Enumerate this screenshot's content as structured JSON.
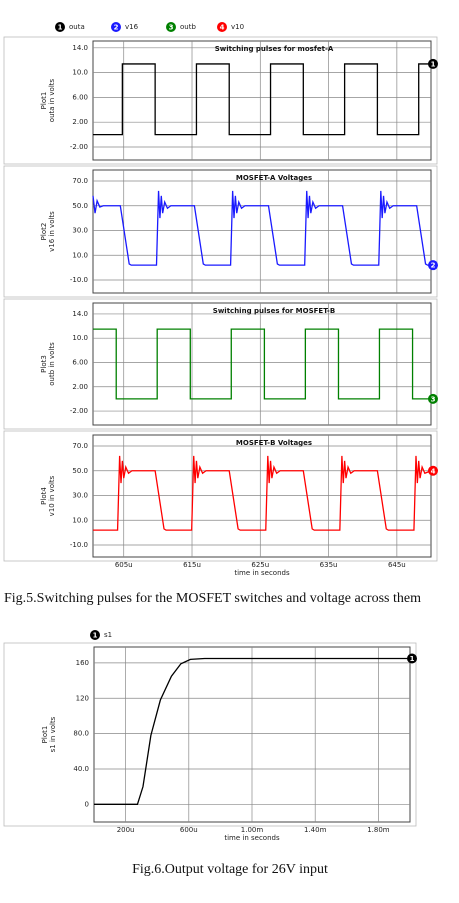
{
  "captions": [
    "Fig.5.Switching pulses for the MOSFET switches and voltage across them",
    "Fig.6.Output voltage for 26V input"
  ],
  "chart_data": [
    {
      "type": "line",
      "title": "Switching pulses for mosfet-A",
      "plot_name": "Plot1",
      "ylabel": "outa in volts",
      "xlim": [
        0.0006005,
        0.00065
      ],
      "xticks": [
        {
          "value": 0.000605,
          "label": "605u"
        },
        {
          "value": 0.000615,
          "label": "615u"
        },
        {
          "value": 0.000625,
          "label": "625u"
        },
        {
          "value": 0.000635,
          "label": "635u"
        },
        {
          "value": 0.000645,
          "label": "645u"
        }
      ],
      "ylim": [
        -4.1,
        15.1
      ],
      "yticks": [
        {
          "value": -2,
          "label": "-2.00"
        },
        {
          "value": 2,
          "label": "2.00"
        },
        {
          "value": 6,
          "label": "6.00"
        },
        {
          "value": 10,
          "label": "10.0"
        },
        {
          "value": 14,
          "label": "14.0"
        }
      ],
      "grid": true,
      "series": [
        {
          "name": "outa",
          "marker": "1",
          "color": "#000000",
          "x": [
            0.0006005,
            0.0006048,
            0.0006048,
            0.0006096,
            0.0006096,
            0.00061565,
            0.00061565,
            0.00062045,
            0.00062045,
            0.0006265,
            0.0006265,
            0.0006313,
            0.0006313,
            0.00063735,
            0.00063735,
            0.00064215,
            0.00064215,
            0.0006482,
            0.0006482,
            0.00065
          ],
          "values": [
            0,
            0,
            11.4,
            11.4,
            0,
            0,
            11.4,
            11.4,
            0,
            0,
            11.4,
            11.4,
            0,
            0,
            11.4,
            11.4,
            0,
            0,
            11.4,
            11.4
          ]
        }
      ]
    },
    {
      "type": "line",
      "title": "MOSFET-A Voltages",
      "plot_name": "Plot2",
      "ylabel": "v16 in volts",
      "xlim": [
        0.0006005,
        0.00065
      ],
      "xticks": [
        {
          "value": 0.000605,
          "label": "605u"
        },
        {
          "value": 0.000615,
          "label": "615u"
        },
        {
          "value": 0.000625,
          "label": "625u"
        },
        {
          "value": 0.000635,
          "label": "635u"
        },
        {
          "value": 0.000645,
          "label": "645u"
        }
      ],
      "ylim": [
        -20.5,
        78.9
      ],
      "yticks": [
        {
          "value": -10,
          "label": "-10.0"
        },
        {
          "value": 10,
          "label": "10.0"
        },
        {
          "value": 30,
          "label": "30.0"
        },
        {
          "value": 50,
          "label": "50.0"
        },
        {
          "value": 70,
          "label": "70.0"
        }
      ],
      "grid": true,
      "series": [
        {
          "name": "v16",
          "marker": "2",
          "color": "#1a1aff",
          "x": [
            0.0006005,
            0.0006008,
            0.0006011,
            0.0006015,
            0.000602,
            0.0006045,
            0.0006058,
            0.0006061,
            0.0006098,
            0.0006101,
            0.0006103,
            0.0006105,
            0.0006107,
            0.000611,
            0.0006114,
            0.0006119,
            0.00061535,
            0.00061665,
            0.00061695,
            0.00062065,
            0.00062095,
            0.00062115,
            0.00062135,
            0.00062155,
            0.00062185,
            0.00062225,
            0.00062275,
            0.0006262,
            0.0006275,
            0.0006278,
            0.0006315,
            0.0006318,
            0.000632,
            0.0006322,
            0.0006324,
            0.0006327,
            0.0006331,
            0.0006336,
            0.00063705,
            0.00063835,
            0.00063865,
            0.00064235,
            0.00064265,
            0.00064285,
            0.00064305,
            0.00064325,
            0.00064355,
            0.00064395,
            0.00064445,
            0.0006479,
            0.0006492,
            0.0006495,
            0.00065
          ],
          "values": [
            58,
            44,
            54,
            49,
            50,
            50,
            3,
            2,
            2,
            62,
            40,
            58,
            44,
            53,
            48,
            50,
            50,
            3,
            2,
            2,
            62,
            40,
            58,
            44,
            53,
            48,
            50,
            50,
            3,
            2,
            2,
            62,
            40,
            58,
            44,
            53,
            48,
            50,
            50,
            3,
            2,
            2,
            62,
            40,
            58,
            44,
            53,
            48,
            50,
            50,
            3,
            2,
            2
          ]
        }
      ]
    },
    {
      "type": "line",
      "title": "Switching pulses for MOSFET-B",
      "plot_name": "Plot3",
      "ylabel": "outb in volts",
      "xlim": [
        0.0006005,
        0.00065
      ],
      "xticks": [
        {
          "value": 0.000605,
          "label": "605u"
        },
        {
          "value": 0.000615,
          "label": "615u"
        },
        {
          "value": 0.000625,
          "label": "625u"
        },
        {
          "value": 0.000635,
          "label": "635u"
        },
        {
          "value": 0.000645,
          "label": "645u"
        }
      ],
      "ylim": [
        -4.3,
        15.8
      ],
      "yticks": [
        {
          "value": -2,
          "label": "-2.00"
        },
        {
          "value": 2,
          "label": "2.00"
        },
        {
          "value": 6,
          "label": "6.00"
        },
        {
          "value": 10,
          "label": "10.0"
        },
        {
          "value": 14,
          "label": "14.0"
        }
      ],
      "grid": true,
      "series": [
        {
          "name": "outb",
          "marker": "3",
          "color": "#008000",
          "x": [
            0.0006005,
            0.0006039,
            0.0006039,
            0.0006099,
            0.0006099,
            0.00061475,
            0.00061475,
            0.00062075,
            0.00062075,
            0.0006256,
            0.0006256,
            0.0006316,
            0.0006316,
            0.00063645,
            0.00063645,
            0.00064245,
            0.00064245,
            0.0006473,
            0.0006473,
            0.00065
          ],
          "values": [
            11.5,
            11.5,
            0,
            0,
            11.5,
            11.5,
            0,
            0,
            11.5,
            11.5,
            0,
            0,
            11.5,
            11.5,
            0,
            0,
            11.5,
            11.5,
            0,
            0
          ]
        }
      ]
    },
    {
      "type": "line",
      "title": "MOSFET-B Voltages",
      "plot_name": "Plot4",
      "ylabel": "v10 in volts",
      "xlabel": "time in seconds",
      "xlim": [
        0.0006005,
        0.00065
      ],
      "xticks": [
        {
          "value": 0.000605,
          "label": "605u"
        },
        {
          "value": 0.000615,
          "label": "615u"
        },
        {
          "value": 0.000625,
          "label": "625u"
        },
        {
          "value": 0.000635,
          "label": "635u"
        },
        {
          "value": 0.000645,
          "label": "645u"
        }
      ],
      "ylim": [
        -19.7,
        78.9
      ],
      "yticks": [
        {
          "value": -10,
          "label": "-10.0"
        },
        {
          "value": 10,
          "label": "10.0"
        },
        {
          "value": 30,
          "label": "30.0"
        },
        {
          "value": 50,
          "label": "50.0"
        },
        {
          "value": 70,
          "label": "70.0"
        }
      ],
      "grid": true,
      "series": [
        {
          "name": "v10",
          "marker": "4",
          "color": "#ff0000",
          "x": [
            0.0006005,
            0.0006041,
            0.0006044,
            0.0006046,
            0.0006048,
            0.000605,
            0.0006053,
            0.0006057,
            0.0006062,
            0.0006096,
            0.0006109,
            0.0006112,
            0.00061495,
            0.00061525,
            0.00061545,
            0.00061565,
            0.00061585,
            0.00061615,
            0.00061655,
            0.00061705,
            0.00062045,
            0.00062175,
            0.00062205,
            0.0006258,
            0.0006261,
            0.0006263,
            0.0006265,
            0.0006267,
            0.000627,
            0.0006274,
            0.0006279,
            0.0006313,
            0.0006326,
            0.0006329,
            0.00063665,
            0.00063695,
            0.00063715,
            0.00063735,
            0.00063755,
            0.00063785,
            0.00063825,
            0.00063875,
            0.00064215,
            0.00064345,
            0.00064375,
            0.0006475,
            0.0006478,
            0.000648,
            0.0006482,
            0.0006484,
            0.0006487,
            0.0006491,
            0.00065
          ],
          "values": [
            2,
            2,
            62,
            40,
            58,
            44,
            53,
            48,
            50,
            50,
            3,
            2,
            2,
            62,
            40,
            58,
            44,
            53,
            48,
            50,
            50,
            3,
            2,
            2,
            62,
            40,
            58,
            44,
            53,
            48,
            50,
            50,
            3,
            2,
            2,
            62,
            40,
            58,
            44,
            53,
            48,
            50,
            50,
            3,
            2,
            2,
            62,
            40,
            58,
            44,
            53,
            48,
            50
          ]
        }
      ]
    },
    {
      "type": "line",
      "plot_name": "Plot1",
      "ylabel": "s1 in volts",
      "xlabel": "time in seconds",
      "xlim": [
        0,
        0.002
      ],
      "xticks": [
        {
          "value": 0.0002,
          "label": "200u"
        },
        {
          "value": 0.0006,
          "label": "600u"
        },
        {
          "value": 0.001,
          "label": "1.00m"
        },
        {
          "value": 0.0014,
          "label": "1.40m"
        },
        {
          "value": 0.0018,
          "label": "1.80m"
        }
      ],
      "ylim": [
        -20,
        178
      ],
      "yticks": [
        0,
        {
          "value": 40,
          "label": "40.0"
        },
        {
          "value": 80,
          "label": "80.0"
        },
        120,
        160
      ],
      "grid": true,
      "series": [
        {
          "name": "s1",
          "marker": "1",
          "color": "#000000",
          "x": [
            0,
            0.000275,
            0.00031,
            0.00036,
            0.00042,
            0.00049,
            0.00055,
            0.00061,
            0.0007,
            0.002
          ],
          "values": [
            0,
            0,
            20,
            78,
            118,
            145,
            159,
            164,
            165,
            165
          ]
        }
      ]
    }
  ]
}
